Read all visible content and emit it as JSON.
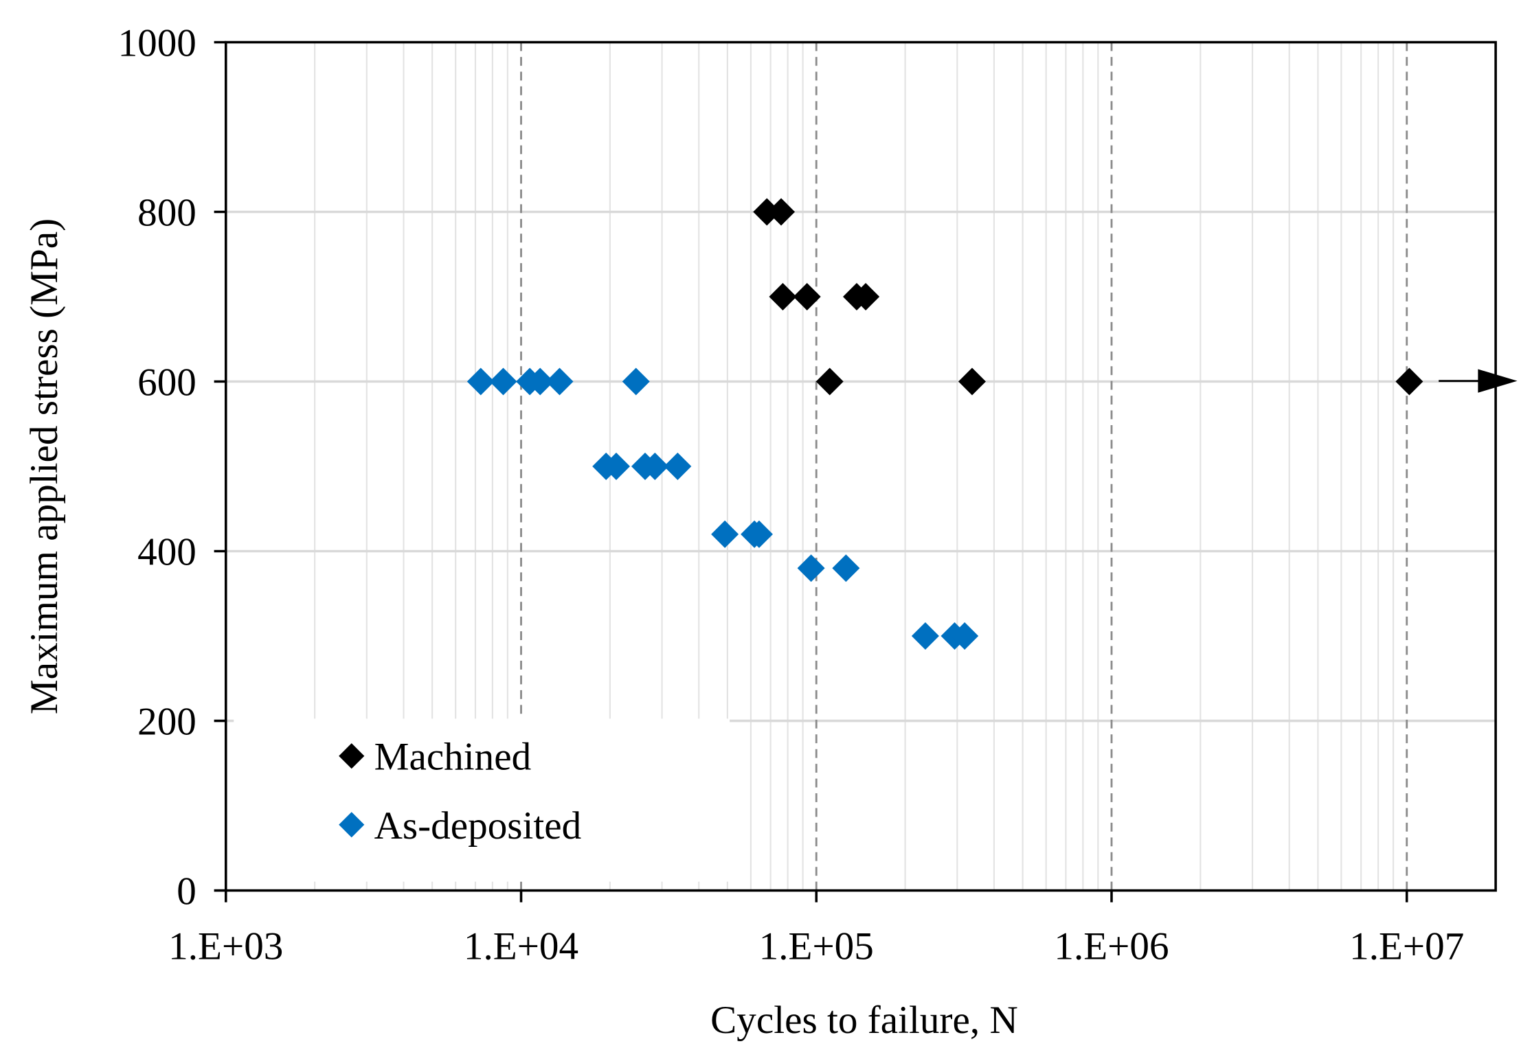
{
  "chart_data": {
    "type": "scatter",
    "x_label": "Cycles to failure, N",
    "y_label": "Maximum applied stress (MPa)",
    "log_x": true,
    "grid": true,
    "legend": "lower left",
    "xlim": [
      1000,
      20000000
    ],
    "ylim": [
      0,
      1000
    ],
    "xticks": [
      {
        "value": 1000,
        "label": "1.E+03"
      },
      {
        "value": 10000,
        "label": "1.E+04"
      },
      {
        "value": 100000,
        "label": "1.E+05"
      },
      {
        "value": 1000000,
        "label": "1.E+06"
      },
      {
        "value": 10000000,
        "label": "1.E+07"
      }
    ],
    "yticks": [
      0,
      200,
      400,
      600,
      800,
      1000
    ],
    "series": [
      {
        "name": "Machined",
        "color": "#000000",
        "x": [
          68000,
          76000,
          77000,
          93000,
          137000,
          147000,
          111000,
          337000,
          10200000
        ],
        "values": [
          800,
          800,
          700,
          700,
          700,
          700,
          600,
          600,
          600
        ]
      },
      {
        "name": "As-deposited",
        "color": "#0070c0",
        "x": [
          7300,
          8700,
          10700,
          11600,
          13500,
          24500,
          19400,
          21000,
          26300,
          28400,
          33900,
          49000,
          61700,
          64000,
          96000,
          126000,
          234000,
          294000,
          318000
        ],
        "values": [
          600,
          600,
          600,
          600,
          600,
          600,
          500,
          500,
          500,
          500,
          500,
          420,
          420,
          420,
          380,
          380,
          300,
          300,
          300
        ]
      }
    ]
  }
}
